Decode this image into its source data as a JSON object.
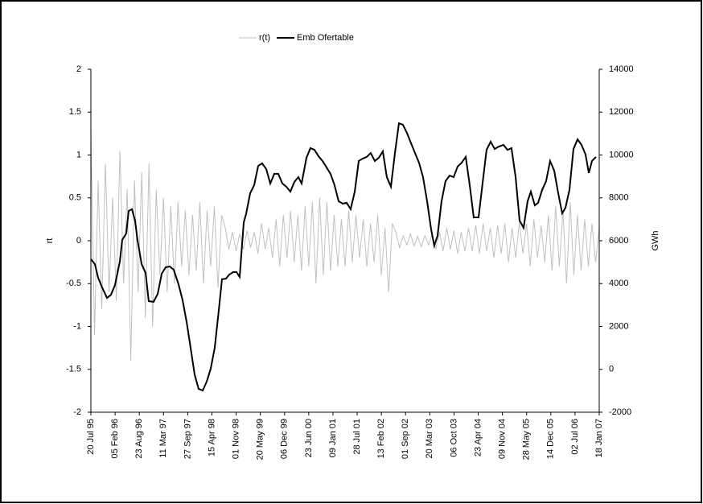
{
  "chart_data": {
    "type": "line",
    "y_label": "rt",
    "y2_label": "GWh",
    "xlim": [
      0,
      4200
    ],
    "xticks": [
      {
        "value": 0,
        "label": "20 Jul 95"
      },
      {
        "value": 200,
        "label": "05 Feb 96"
      },
      {
        "value": 400,
        "label": "23 Aug 96"
      },
      {
        "value": 600,
        "label": "11 Mar 97"
      },
      {
        "value": 800,
        "label": "27 Sep 97"
      },
      {
        "value": 1000,
        "label": "15 Apr 98"
      },
      {
        "value": 1200,
        "label": "01 Nov 98"
      },
      {
        "value": 1400,
        "label": "20 May 99"
      },
      {
        "value": 1600,
        "label": "06 Dec 99"
      },
      {
        "value": 1800,
        "label": "23 Jun 00"
      },
      {
        "value": 2000,
        "label": "09 Jan 01"
      },
      {
        "value": 2200,
        "label": "28 Jul 01"
      },
      {
        "value": 2400,
        "label": "13 Feb 02"
      },
      {
        "value": 2600,
        "label": "01 Sep 02"
      },
      {
        "value": 2800,
        "label": "20 Mar 03"
      },
      {
        "value": 3000,
        "label": "06 Oct 03"
      },
      {
        "value": 3200,
        "label": "23 Apr 04"
      },
      {
        "value": 3400,
        "label": "09 Nov 04"
      },
      {
        "value": 3600,
        "label": "28 May 05"
      },
      {
        "value": 3800,
        "label": "14 Dec 05"
      },
      {
        "value": 4000,
        "label": "02 Jul 06"
      },
      {
        "value": 4200,
        "label": "18 Jan 07"
      }
    ],
    "ylim": [
      -2,
      2
    ],
    "yticks": [
      -2,
      -1.5,
      -1,
      -0.5,
      0,
      0.5,
      1,
      1.5,
      2
    ],
    "y2lim": [
      -2000,
      14000
    ],
    "y2ticks": [
      -2000,
      0,
      2000,
      4000,
      6000,
      8000,
      10000,
      12000,
      14000
    ],
    "grid": false,
    "legend": "top",
    "series": [
      {
        "name": "r(t)",
        "color": "#c0c0c0",
        "x": [
          0,
          30,
          60,
          90,
          120,
          150,
          180,
          210,
          240,
          270,
          300,
          330,
          360,
          390,
          420,
          450,
          480,
          510,
          540,
          570,
          600,
          630,
          660,
          690,
          720,
          750,
          780,
          810,
          840,
          870,
          900,
          930,
          960,
          990,
          1020,
          1050,
          1080,
          1110,
          1140,
          1170,
          1200,
          1230,
          1260,
          1290,
          1320,
          1350,
          1380,
          1410,
          1440,
          1470,
          1500,
          1530,
          1560,
          1590,
          1620,
          1650,
          1680,
          1710,
          1740,
          1770,
          1800,
          1830,
          1860,
          1890,
          1920,
          1950,
          1980,
          2010,
          2040,
          2070,
          2100,
          2130,
          2160,
          2190,
          2220,
          2250,
          2280,
          2310,
          2340,
          2370,
          2400,
          2430,
          2460,
          2490,
          2520,
          2550,
          2580,
          2610,
          2640,
          2670,
          2700,
          2730,
          2760,
          2790,
          2820,
          2850,
          2880,
          2910,
          2940,
          2970,
          3000,
          3030,
          3060,
          3090,
          3120,
          3150,
          3180,
          3210,
          3240,
          3270,
          3300,
          3330,
          3360,
          3390,
          3420,
          3450,
          3480,
          3510,
          3540,
          3570,
          3600,
          3630,
          3660,
          3690,
          3720,
          3750,
          3780,
          3810,
          3840,
          3870,
          3900,
          3930,
          3960,
          3990,
          4020,
          4050,
          4080,
          4110,
          4140,
          4170,
          4200
        ],
        "values": [
          1.3,
          -1.1,
          0.7,
          -0.8,
          0.9,
          -0.6,
          0.5,
          -0.7,
          1.05,
          -0.5,
          0.6,
          -1.4,
          0.7,
          -0.6,
          0.8,
          -0.9,
          0.9,
          -1.0,
          0.6,
          -0.4,
          0.5,
          -0.6,
          0.4,
          -0.5,
          0.45,
          -0.3,
          0.35,
          -0.4,
          0.3,
          -0.35,
          0.45,
          -0.5,
          0.35,
          -0.3,
          0.4,
          -0.55,
          0.3,
          0.15,
          -0.1,
          0.1,
          -0.12,
          0.08,
          -0.1,
          0.12,
          -0.08,
          0.1,
          -0.15,
          0.2,
          -0.1,
          0.15,
          -0.2,
          0.25,
          -0.3,
          0.3,
          -0.2,
          0.35,
          -0.25,
          0.3,
          -0.35,
          0.4,
          -0.3,
          0.45,
          -0.5,
          0.5,
          -0.4,
          0.45,
          -0.35,
          0.3,
          -0.3,
          0.25,
          -0.3,
          0.35,
          -0.25,
          0.3,
          -0.2,
          0.25,
          -0.3,
          0.2,
          -0.25,
          0.3,
          -0.4,
          0.15,
          -0.6,
          0.2,
          0.1,
          -0.08,
          0.06,
          -0.05,
          0.08,
          -0.06,
          0.05,
          -0.07,
          0.06,
          -0.05,
          0.08,
          -0.1,
          0.1,
          -0.12,
          0.15,
          -0.1,
          0.12,
          -0.15,
          0.1,
          -0.12,
          0.15,
          -0.12,
          0.18,
          -0.15,
          0.2,
          -0.12,
          0.15,
          -0.2,
          0.18,
          -0.15,
          0.2,
          -0.25,
          0.15,
          -0.2,
          0.22,
          -0.15,
          0.2,
          -0.3,
          0.25,
          -0.2,
          0.18,
          -0.25,
          0.3,
          -0.35,
          0.4,
          -0.3,
          0.35,
          -0.5,
          0.45,
          -0.4,
          0.3,
          -0.35,
          0.25,
          -0.3,
          0.2,
          -0.25,
          0.15
        ]
      },
      {
        "name": "Emb Ofertable",
        "color": "#000000",
        "axis": "y2",
        "x": [
          0,
          33,
          60,
          93,
          133,
          166,
          199,
          239,
          259,
          292,
          312,
          339,
          365,
          385,
          419,
          452,
          478,
          518,
          552,
          585,
          618,
          651,
          684,
          724,
          758,
          791,
          824,
          857,
          890,
          924,
          957,
          990,
          1023,
          1057,
          1083,
          1116,
          1143,
          1176,
          1203,
          1229,
          1263,
          1282,
          1316,
          1349,
          1382,
          1415,
          1449,
          1482,
          1515,
          1548,
          1582,
          1615,
          1648,
          1681,
          1714,
          1741,
          1781,
          1814,
          1847,
          1881,
          1914,
          1947,
          1980,
          2013,
          2047,
          2080,
          2113,
          2146,
          2180,
          2213,
          2246,
          2279,
          2312,
          2346,
          2379,
          2412,
          2445,
          2479,
          2512,
          2545,
          2578,
          2611,
          2645,
          2678,
          2711,
          2744,
          2778,
          2811,
          2837,
          2864,
          2897,
          2930,
          2964,
          2997,
          3030,
          3063,
          3097,
          3130,
          3163,
          3203,
          3236,
          3269,
          3303,
          3336,
          3369,
          3409,
          3442,
          3475,
          3509,
          3542,
          3575,
          3608,
          3635,
          3668,
          3695,
          3728,
          3761,
          3794,
          3828,
          3861,
          3894,
          3921,
          3954,
          3987,
          4021,
          4054,
          4087,
          4114,
          4140,
          4173
        ],
        "values": [
          5140,
          4910,
          4270,
          3820,
          3330,
          3480,
          3930,
          5020,
          6040,
          6340,
          7390,
          7470,
          6940,
          6040,
          4910,
          4500,
          3180,
          3150,
          3520,
          4460,
          4760,
          4800,
          4650,
          3970,
          3220,
          2210,
          1000,
          -240,
          -910,
          -990,
          -570,
          30,
          1000,
          2770,
          4200,
          4230,
          4420,
          4540,
          4540,
          4310,
          6860,
          7240,
          8220,
          8590,
          9490,
          9610,
          9340,
          8670,
          9120,
          9120,
          8670,
          8520,
          8290,
          8740,
          8970,
          8670,
          9870,
          10320,
          10240,
          9940,
          9720,
          9420,
          9120,
          8590,
          7840,
          7730,
          7770,
          7470,
          8290,
          9720,
          9830,
          9910,
          10090,
          9720,
          9870,
          10170,
          8970,
          8520,
          10090,
          11480,
          11410,
          11030,
          10550,
          10090,
          9640,
          8970,
          7840,
          6530,
          5770,
          6230,
          7840,
          8780,
          9040,
          8970,
          9460,
          9640,
          9910,
          8590,
          7090,
          7090,
          8670,
          10240,
          10620,
          10280,
          10390,
          10470,
          10240,
          10320,
          8970,
          6940,
          6600,
          7840,
          8290,
          7650,
          7770,
          8370,
          8780,
          9720,
          9270,
          8220,
          7280,
          7540,
          8370,
          10280,
          10730,
          10470,
          10020,
          9160,
          9720,
          9910
        ]
      }
    ]
  }
}
